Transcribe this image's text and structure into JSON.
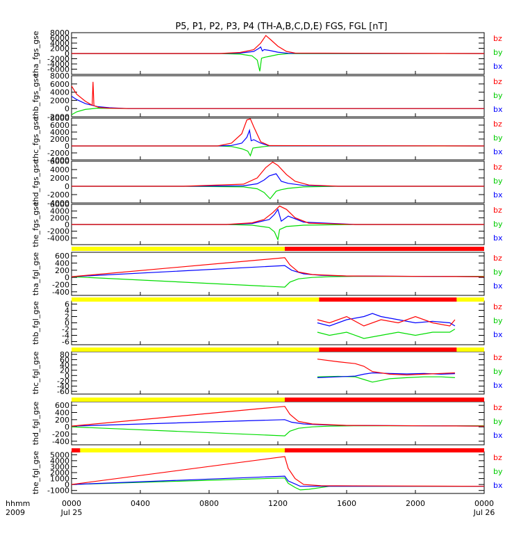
{
  "title": "P5, P1, P2, P3, P4 (TH-A,B,C,D,E) FGS, FGL [nT]",
  "x_axis": {
    "label_top": "hhmm",
    "label_bottom": "2009",
    "ticks": [
      "0000",
      "0400",
      "0800",
      "1200",
      "1600",
      "2000",
      "0000"
    ],
    "date_labels": [
      "Jul 25",
      "Jul 26"
    ]
  },
  "legend": [
    {
      "label": "bz",
      "color": "#ff0000"
    },
    {
      "label": "by",
      "color": "#00cc00"
    },
    {
      "label": "bx",
      "color": "#0000ff"
    }
  ],
  "colors": {
    "bx": "#0000ff",
    "by": "#00dd00",
    "bz": "#ff0000",
    "bar_on": "#ffff00",
    "bar_off": "#ff0000",
    "axis": "#000000"
  },
  "chart_data": [
    {
      "type": "line",
      "ylabel": "tha_fgs_gse",
      "ylim": [
        -8000,
        8000
      ],
      "yticks": [
        "8000",
        "6000",
        "4000",
        "2000",
        "0",
        "-2000",
        "-4000",
        "-6000"
      ],
      "series": [
        {
          "name": "bx",
          "x": [
            0,
            8.6,
            9.8,
            10.6,
            10.9,
            11.0,
            11.1,
            11.2,
            11.5,
            12.0,
            12.6,
            24
          ],
          "y": [
            0,
            0,
            150,
            800,
            2000,
            2500,
            1000,
            1500,
            1200,
            500,
            80,
            0
          ]
        },
        {
          "name": "by",
          "x": [
            0,
            8.6,
            9.8,
            10.5,
            10.8,
            10.95,
            11.05,
            11.2,
            11.5,
            12.0,
            12.6,
            24
          ],
          "y": [
            0,
            0,
            -250,
            -900,
            -2500,
            -6800,
            -1800,
            -1500,
            -1100,
            -400,
            -60,
            0
          ]
        },
        {
          "name": "bz",
          "x": [
            0,
            8.6,
            9.8,
            10.6,
            11.0,
            11.3,
            11.6,
            12.0,
            12.5,
            13.0,
            24
          ],
          "y": [
            0,
            0,
            400,
            1500,
            4000,
            6900,
            5200,
            2800,
            800,
            150,
            0
          ]
        }
      ]
    },
    {
      "type": "line",
      "ylabel": "thb_fgs_gse",
      "ylim": [
        -2000,
        8000
      ],
      "yticks": [
        "8000",
        "6000",
        "4000",
        "2000",
        "0",
        "-2000"
      ],
      "series": [
        {
          "name": "bx",
          "x": [
            0,
            0.3,
            0.8,
            1.5,
            2.2,
            3.3,
            24
          ],
          "y": [
            3000,
            2200,
            1200,
            500,
            200,
            0,
            0
          ]
        },
        {
          "name": "by",
          "x": [
            0,
            0.3,
            0.8,
            1.5,
            2.2,
            3.3,
            24
          ],
          "y": [
            -1500,
            -800,
            -200,
            100,
            50,
            0,
            0
          ]
        },
        {
          "name": "bz",
          "x": [
            0,
            0.3,
            0.8,
            1.2,
            1.25,
            1.3,
            1.6,
            2.2,
            3.3,
            24
          ],
          "y": [
            5500,
            3500,
            1800,
            800,
            6500,
            700,
            250,
            100,
            0,
            0
          ]
        }
      ]
    },
    {
      "type": "line",
      "ylabel": "thc_fgs_gse",
      "ylim": [
        -4000,
        8000
      ],
      "yticks": [
        "8000",
        "6000",
        "4000",
        "2000",
        "0",
        "-2000",
        "-4000"
      ],
      "series": [
        {
          "name": "bx",
          "x": [
            0,
            8.5,
            9.3,
            9.9,
            10.2,
            10.35,
            10.45,
            10.6,
            11.0,
            11.5,
            24
          ],
          "y": [
            0,
            0,
            150,
            800,
            2500,
            4500,
            1500,
            1800,
            800,
            50,
            0
          ]
        },
        {
          "name": "by",
          "x": [
            0,
            8.5,
            9.3,
            9.9,
            10.25,
            10.4,
            10.55,
            11.0,
            11.5,
            24
          ],
          "y": [
            0,
            0,
            -150,
            -800,
            -1500,
            -2800,
            -600,
            -300,
            0,
            0
          ]
        },
        {
          "name": "bz",
          "x": [
            0,
            8.5,
            9.3,
            9.9,
            10.2,
            10.4,
            10.6,
            11.0,
            11.5,
            24
          ],
          "y": [
            0,
            0,
            800,
            3500,
            7500,
            7800,
            5500,
            1200,
            100,
            0
          ]
        }
      ]
    },
    {
      "type": "line",
      "ylabel": "thd_fgs_gse",
      "ylim": [
        -4000,
        6000
      ],
      "yticks": [
        "6000",
        "4000",
        "2000",
        "0",
        "-2000",
        "-4000"
      ],
      "series": [
        {
          "name": "bx",
          "x": [
            0,
            6.5,
            10.0,
            10.8,
            11.2,
            11.5,
            11.9,
            12.2,
            12.6,
            13.5,
            15.5,
            24
          ],
          "y": [
            0,
            0,
            100,
            600,
            1500,
            2500,
            3000,
            1200,
            700,
            200,
            0,
            0
          ]
        },
        {
          "name": "by",
          "x": [
            0,
            6.5,
            10.0,
            10.8,
            11.2,
            11.55,
            11.9,
            12.2,
            12.6,
            13.5,
            15.5,
            24
          ],
          "y": [
            0,
            0,
            -150,
            -600,
            -1500,
            -3000,
            -1200,
            -800,
            -500,
            -150,
            0,
            0
          ]
        },
        {
          "name": "bz",
          "x": [
            0,
            6.5,
            10.0,
            10.8,
            11.3,
            11.7,
            12.0,
            12.5,
            13.0,
            13.8,
            15.5,
            24
          ],
          "y": [
            0,
            0,
            500,
            2000,
            4500,
            5800,
            5000,
            2800,
            1200,
            300,
            0,
            0
          ]
        }
      ]
    },
    {
      "type": "line",
      "ylabel": "the_fgs_gse",
      "ylim": [
        -6000,
        6000
      ],
      "yticks": [
        "6000",
        "4000",
        "2000",
        "0",
        "-2000",
        "-4000"
      ],
      "series": [
        {
          "name": "bx",
          "x": [
            0,
            9.0,
            10.5,
            11.5,
            11.8,
            12.0,
            12.2,
            12.6,
            13.5,
            16.5,
            24
          ],
          "y": [
            0,
            0,
            300,
            1500,
            3000,
            4500,
            1000,
            2500,
            700,
            0,
            0
          ]
        },
        {
          "name": "by",
          "x": [
            0,
            9.0,
            10.5,
            11.5,
            11.8,
            12.0,
            12.1,
            12.5,
            13.5,
            16.5,
            24
          ],
          "y": [
            0,
            0,
            -200,
            -900,
            -2200,
            -4500,
            -1500,
            -600,
            -200,
            0,
            0
          ]
        },
        {
          "name": "bz",
          "x": [
            0,
            9.0,
            10.5,
            11.2,
            11.7,
            12.1,
            12.5,
            13.0,
            13.8,
            16.5,
            24
          ],
          "y": [
            0,
            0,
            500,
            1500,
            3500,
            5500,
            4500,
            2000,
            400,
            0,
            0
          ]
        }
      ]
    },
    {
      "type": "line",
      "ylabel": "tha_fgl_gse",
      "ylim": [
        -500,
        700
      ],
      "yticks": [
        "600",
        "400",
        "200",
        "0",
        "-200",
        "-400"
      ],
      "series": [
        {
          "name": "bx",
          "x": [
            0,
            12.4,
            12.8,
            13.5,
            14.5,
            16.0,
            24
          ],
          "y": [
            20,
            330,
            200,
            100,
            60,
            40,
            20
          ]
        },
        {
          "name": "by",
          "x": [
            0,
            12.4,
            12.7,
            13.2,
            14.0,
            15.0,
            16.5,
            24
          ],
          "y": [
            20,
            -270,
            -130,
            -40,
            0,
            20,
            30,
            30
          ]
        },
        {
          "name": "bz",
          "x": [
            0,
            12.4,
            12.7,
            13.2,
            14.0,
            16.0,
            24
          ],
          "y": [
            20,
            550,
            350,
            150,
            80,
            40,
            20
          ]
        }
      ]
    },
    {
      "type": "line",
      "ylabel": "thb_fgl_gse",
      "ylim": [
        -7,
        7
      ],
      "yticks": [
        "6",
        "4",
        "2",
        "0",
        "-2",
        "-4",
        "-6"
      ],
      "series": [
        {
          "name": "bx",
          "x": [
            14.3,
            15,
            16,
            17,
            17.5,
            18,
            19,
            20,
            21,
            22,
            22.3
          ],
          "y": [
            0,
            -1,
            1,
            2,
            3,
            2,
            1,
            0,
            0.5,
            0,
            -1
          ]
        },
        {
          "name": "by",
          "x": [
            14.3,
            15,
            16,
            17,
            18,
            19,
            20,
            21,
            22,
            22.3
          ],
          "y": [
            -3,
            -4,
            -3,
            -5,
            -4,
            -3,
            -4,
            -3,
            -3,
            -2
          ]
        },
        {
          "name": "bz",
          "x": [
            14.3,
            15,
            16,
            17,
            18,
            19,
            20,
            21,
            22,
            22.3
          ],
          "y": [
            1,
            0,
            2,
            -1,
            1,
            0,
            2,
            0,
            -1,
            1
          ]
        }
      ]
    },
    {
      "type": "line",
      "ylabel": "thc_fgl_gse",
      "ylim": [
        -70,
        90
      ],
      "yticks": [
        "80",
        "60",
        "40",
        "20",
        "0",
        "-20",
        "-40",
        "-60"
      ],
      "series": [
        {
          "name": "bx",
          "x": [
            14.3,
            15.5,
            16.5,
            17.0,
            17.5,
            18.5,
            19.5,
            20.5,
            21.5,
            22.3
          ],
          "y": [
            -8,
            -5,
            -2,
            5,
            10,
            8,
            6,
            8,
            5,
            7
          ]
        },
        {
          "name": "by",
          "x": [
            14.3,
            15.5,
            16.5,
            17.0,
            17.5,
            18.5,
            19.5,
            20.5,
            21.5,
            22.3
          ],
          "y": [
            -5,
            -3,
            -5,
            -15,
            -25,
            -12,
            -8,
            -5,
            -5,
            -8
          ]
        },
        {
          "name": "bz",
          "x": [
            14.3,
            15.5,
            16.5,
            17.0,
            17.5,
            18.5,
            19.5,
            20.5,
            21.5,
            22.3
          ],
          "y": [
            62,
            52,
            45,
            35,
            15,
            5,
            2,
            5,
            8,
            10
          ]
        }
      ]
    },
    {
      "type": "line",
      "ylabel": "thd_fgl_gse",
      "ylim": [
        -500,
        700
      ],
      "yticks": [
        "600",
        "400",
        "200",
        "0",
        "-200",
        "-400"
      ],
      "series": [
        {
          "name": "bx",
          "x": [
            0,
            12.4,
            12.8,
            13.5,
            14.5,
            16.0,
            24
          ],
          "y": [
            20,
            200,
            130,
            80,
            60,
            40,
            20
          ]
        },
        {
          "name": "by",
          "x": [
            0,
            12.4,
            12.7,
            13.2,
            14.0,
            15.0,
            16.5,
            24
          ],
          "y": [
            0,
            -250,
            -120,
            -40,
            0,
            20,
            30,
            30
          ]
        },
        {
          "name": "bz",
          "x": [
            0,
            12.4,
            12.7,
            13.2,
            14.0,
            16.0,
            24
          ],
          "y": [
            20,
            570,
            350,
            150,
            80,
            40,
            20
          ]
        }
      ]
    },
    {
      "type": "line",
      "ylabel": "the_fgl_gse",
      "ylim": [
        -1500,
        5500
      ],
      "yticks": [
        "5000",
        "4000",
        "3000",
        "2000",
        "1000",
        "0",
        "-1000"
      ],
      "series": [
        {
          "name": "bx",
          "x": [
            0,
            12.4,
            12.6,
            13.0,
            13.3,
            15.0,
            24
          ],
          "y": [
            0,
            1400,
            600,
            100,
            -300,
            -300,
            -300
          ]
        },
        {
          "name": "by",
          "x": [
            0,
            12.4,
            12.6,
            13.0,
            13.3,
            13.8,
            15.0,
            24
          ],
          "y": [
            0,
            1100,
            200,
            -500,
            -900,
            -800,
            -300,
            -300
          ]
        },
        {
          "name": "bz",
          "x": [
            0,
            12.4,
            12.6,
            13.0,
            13.5,
            14.5,
            24
          ],
          "y": [
            0,
            4700,
            2700,
            1000,
            0,
            -200,
            -300
          ]
        }
      ]
    }
  ],
  "status_bars": [
    {
      "after_panel": 4,
      "segments": [
        {
          "from": 0,
          "to": 12.4,
          "state": "on"
        },
        {
          "from": 12.4,
          "to": 24,
          "state": "off"
        }
      ]
    },
    {
      "after_panel": 5,
      "segments": [
        {
          "from": 0,
          "to": 14.4,
          "state": "on"
        },
        {
          "from": 14.4,
          "to": 22.4,
          "state": "off"
        },
        {
          "from": 22.4,
          "to": 24,
          "state": "on"
        }
      ]
    },
    {
      "after_panel": 6,
      "segments": [
        {
          "from": 0,
          "to": 14.4,
          "state": "on"
        },
        {
          "from": 14.4,
          "to": 22.4,
          "state": "off"
        },
        {
          "from": 22.4,
          "to": 24,
          "state": "on"
        }
      ]
    },
    {
      "after_panel": 7,
      "segments": [
        {
          "from": 0,
          "to": 12.4,
          "state": "on"
        },
        {
          "from": 12.4,
          "to": 24,
          "state": "off"
        }
      ]
    },
    {
      "after_panel": 8,
      "segments": [
        {
          "from": 0,
          "to": 0.5,
          "state": "off"
        },
        {
          "from": 0.5,
          "to": 12.4,
          "state": "on"
        },
        {
          "from": 12.4,
          "to": 24,
          "state": "off"
        }
      ]
    }
  ]
}
